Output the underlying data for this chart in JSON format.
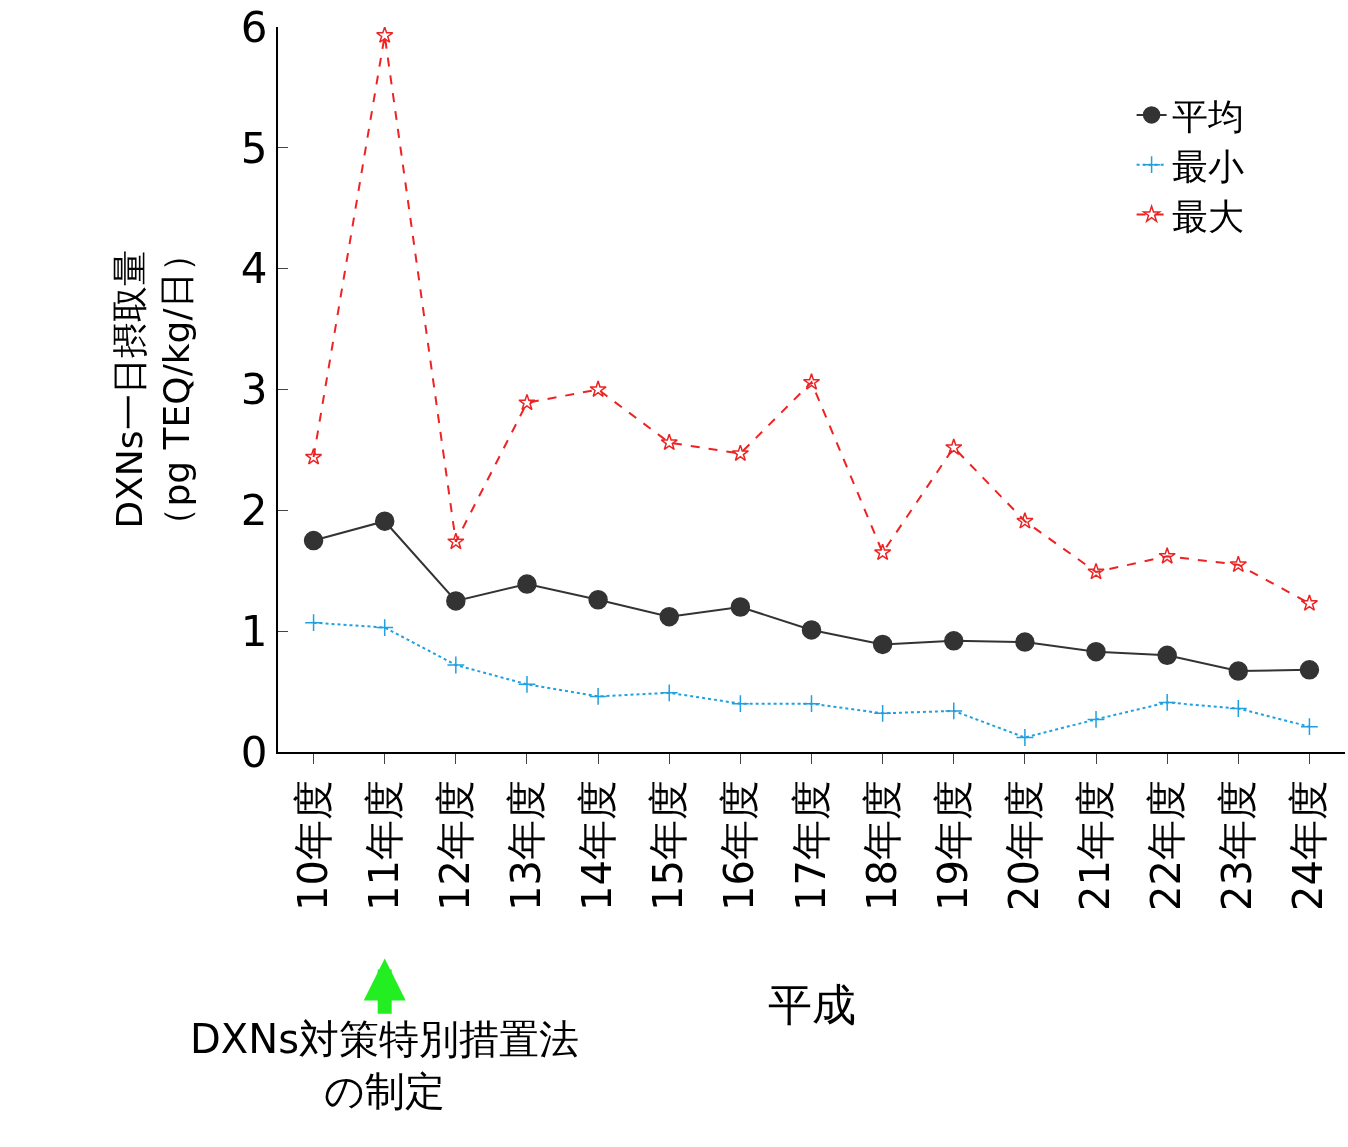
{
  "chart_data": {
    "type": "line",
    "categories": [
      "10年度",
      "11年度",
      "12年度",
      "13年度",
      "14年度",
      "15年度",
      "16年度",
      "17年度",
      "18年度",
      "19年度",
      "20年度",
      "21年度",
      "22年度",
      "23年度",
      "24年度"
    ],
    "xlabel": "平成",
    "ylabel": "DXNs一日摂取量（pg TEQ/kg/日）",
    "ylim": [
      0,
      6
    ],
    "yticks": [
      0,
      1,
      2,
      3,
      4,
      5,
      6
    ],
    "legend": "top right",
    "series": [
      {
        "name": "平均",
        "color": "#333333",
        "marker": "circle",
        "line_style": "solid",
        "values": [
          1.75,
          1.91,
          1.25,
          1.39,
          1.26,
          1.12,
          1.2,
          1.01,
          0.89,
          0.92,
          0.91,
          0.83,
          0.8,
          0.67,
          0.68
        ]
      },
      {
        "name": "最小",
        "color": "#1fa0e0",
        "marker": "cross",
        "line_style": "dotted",
        "values": [
          1.07,
          1.03,
          0.72,
          0.56,
          0.46,
          0.49,
          0.4,
          0.4,
          0.32,
          0.34,
          0.12,
          0.27,
          0.41,
          0.36,
          0.21
        ]
      },
      {
        "name": "最大",
        "color": "#ee2222",
        "marker": "star",
        "line_style": "dashed",
        "values": [
          2.44,
          5.93,
          1.74,
          2.89,
          3.0,
          2.56,
          2.47,
          3.06,
          1.65,
          2.52,
          1.91,
          1.49,
          1.62,
          1.55,
          1.23
        ]
      }
    ],
    "annotations": [
      {
        "text": "DXNs対策特別措置法の制定",
        "x": "11年度"
      }
    ]
  }
}
